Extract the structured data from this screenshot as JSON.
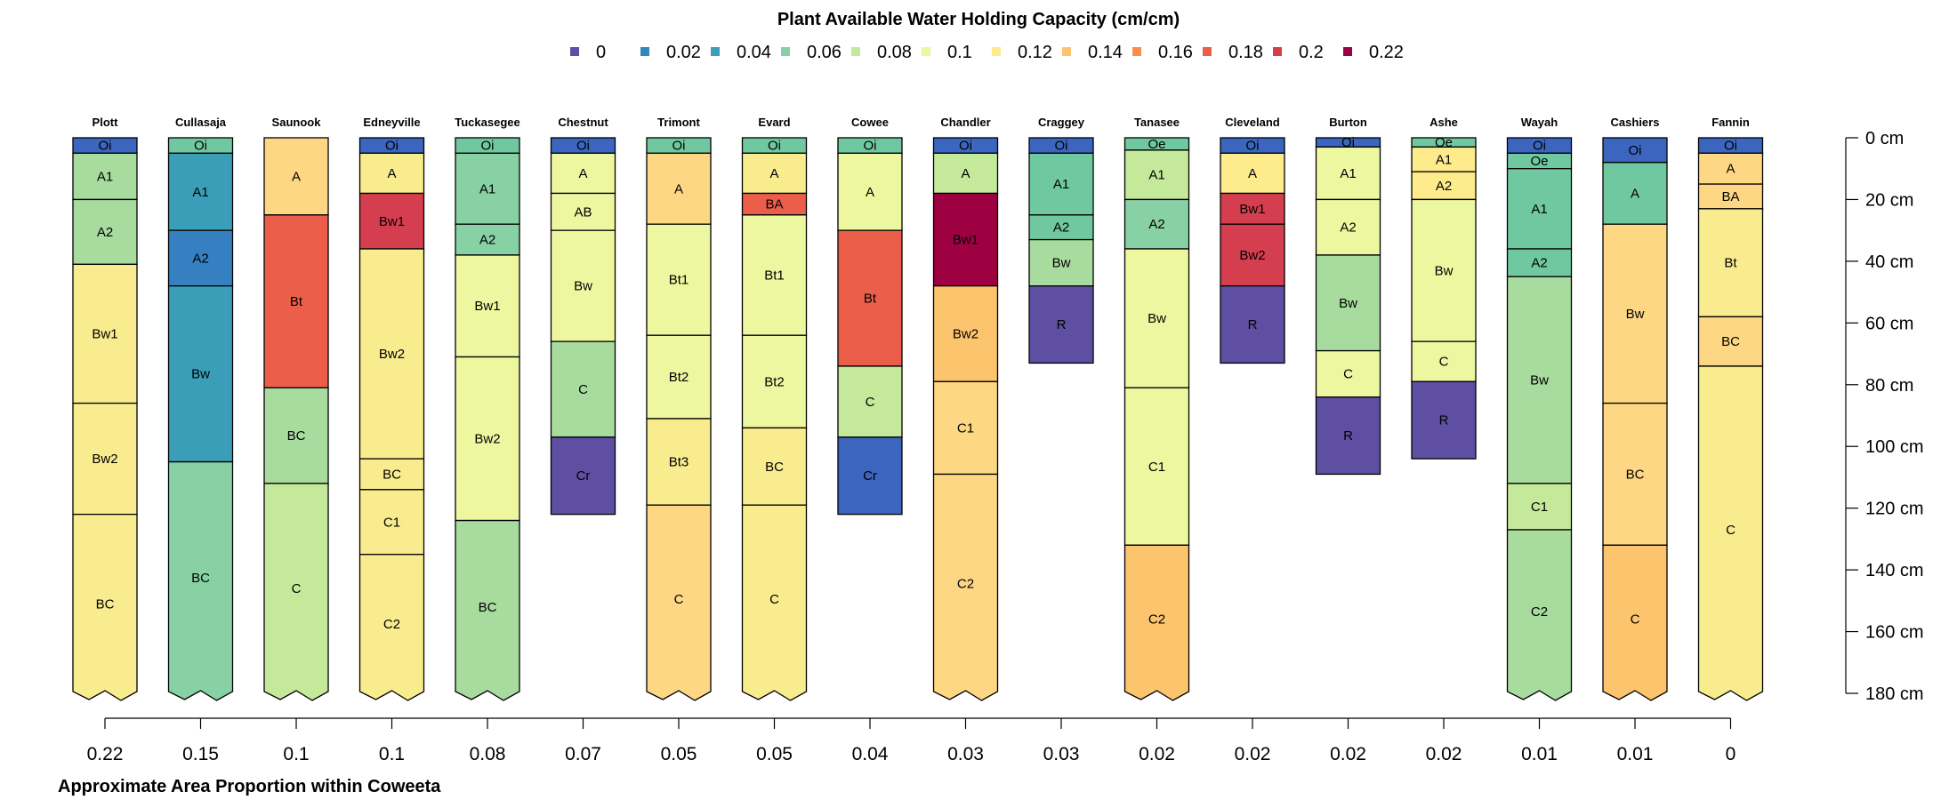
{
  "chart_data": {
    "type": "soil-profile",
    "title": "Plant Available Water Holding Capacity (cm/cm)",
    "xlabel": "Approximate Area Proportion within Coweeta",
    "legend": {
      "placement": "top-center",
      "items": [
        {
          "label": "0",
          "color": "#5E4FA2"
        },
        {
          "label": "0.02",
          "color": "#3288BD"
        },
        {
          "label": "0.04",
          "color": "#3A9EB9"
        },
        {
          "label": "0.06",
          "color": "#88D1A4"
        },
        {
          "label": "0.08",
          "color": "#C5E99B"
        },
        {
          "label": "0.1",
          "color": "#EDF7A0"
        },
        {
          "label": "0.12",
          "color": "#FDEB8C"
        },
        {
          "label": "0.14",
          "color": "#FDC46E"
        },
        {
          "label": "0.16",
          "color": "#F88D52"
        },
        {
          "label": "0.18",
          "color": "#EA5E4A"
        },
        {
          "label": "0.2",
          "color": "#D53E4F"
        },
        {
          "label": "0.22",
          "color": "#9E0142"
        }
      ]
    },
    "depth_axis": {
      "unit": "cm",
      "ticks": [
        "0 cm",
        "20 cm",
        "40 cm",
        "60 cm",
        "80 cm",
        "100 cm",
        "120 cm",
        "140 cm",
        "160 cm",
        "180 cm"
      ],
      "ylim": [
        0,
        180
      ]
    },
    "profiles": [
      {
        "name": "Plott",
        "area": "0.22",
        "truncated": true,
        "horizons": [
          {
            "name": "Oi",
            "top": 0,
            "bottom": 5,
            "color": "#3B65BE"
          },
          {
            "name": "A1",
            "top": 5,
            "bottom": 20,
            "color": "#A8DB9E"
          },
          {
            "name": "A2",
            "top": 20,
            "bottom": 41,
            "color": "#A8DB9E"
          },
          {
            "name": "Bw1",
            "top": 41,
            "bottom": 86,
            "color": "#F8EC8E"
          },
          {
            "name": "Bw2",
            "top": 86,
            "bottom": 122,
            "color": "#F8EC8E"
          },
          {
            "name": "BC",
            "top": 122,
            "bottom": 180,
            "color": "#F8EC8E"
          }
        ]
      },
      {
        "name": "Cullasaja",
        "area": "0.15",
        "truncated": true,
        "horizons": [
          {
            "name": "Oi",
            "top": 0,
            "bottom": 5,
            "color": "#70C8A0"
          },
          {
            "name": "A1",
            "top": 5,
            "bottom": 30,
            "color": "#3A9EB9"
          },
          {
            "name": "A2",
            "top": 30,
            "bottom": 48,
            "color": "#3580C0"
          },
          {
            "name": "Bw",
            "top": 48,
            "bottom": 105,
            "color": "#3A9EB9"
          },
          {
            "name": "BC",
            "top": 105,
            "bottom": 180,
            "color": "#88D1A4"
          }
        ]
      },
      {
        "name": "Saunook",
        "area": "0.1",
        "truncated": true,
        "horizons": [
          {
            "name": "A",
            "top": 0,
            "bottom": 25,
            "color": "#FDD784"
          },
          {
            "name": "Bt",
            "top": 25,
            "bottom": 81,
            "color": "#EA5E4A"
          },
          {
            "name": "BC",
            "top": 81,
            "bottom": 112,
            "color": "#A8DB9E"
          },
          {
            "name": "C",
            "top": 112,
            "bottom": 180,
            "color": "#C5E99B"
          }
        ]
      },
      {
        "name": "Edneyville",
        "area": "0.1",
        "truncated": true,
        "horizons": [
          {
            "name": "Oi",
            "top": 0,
            "bottom": 5,
            "color": "#3B65BE"
          },
          {
            "name": "A",
            "top": 5,
            "bottom": 18,
            "color": "#F8EC8E"
          },
          {
            "name": "Bw1",
            "top": 18,
            "bottom": 36,
            "color": "#D53E4F"
          },
          {
            "name": "Bw2",
            "top": 36,
            "bottom": 104,
            "color": "#F8EC8E"
          },
          {
            "name": "BC",
            "top": 104,
            "bottom": 114,
            "color": "#F8EC8E"
          },
          {
            "name": "C1",
            "top": 114,
            "bottom": 135,
            "color": "#F8EC8E"
          },
          {
            "name": "C2",
            "top": 135,
            "bottom": 180,
            "color": "#F8EC8E"
          }
        ]
      },
      {
        "name": "Tuckasegee",
        "area": "0.08",
        "truncated": true,
        "horizons": [
          {
            "name": "Oi",
            "top": 0,
            "bottom": 5,
            "color": "#70C8A0"
          },
          {
            "name": "A1",
            "top": 5,
            "bottom": 28,
            "color": "#88D1A4"
          },
          {
            "name": "A2",
            "top": 28,
            "bottom": 38,
            "color": "#88D1A4"
          },
          {
            "name": "Bw1",
            "top": 38,
            "bottom": 71,
            "color": "#EDF7A0"
          },
          {
            "name": "Bw2",
            "top": 71,
            "bottom": 124,
            "color": "#EDF7A0"
          },
          {
            "name": "BC",
            "top": 124,
            "bottom": 180,
            "color": "#A8DB9E"
          }
        ]
      },
      {
        "name": "Chestnut",
        "area": "0.07",
        "truncated": false,
        "horizons": [
          {
            "name": "Oi",
            "top": 0,
            "bottom": 5,
            "color": "#3B65BE"
          },
          {
            "name": "A",
            "top": 5,
            "bottom": 18,
            "color": "#EDF7A0"
          },
          {
            "name": "AB",
            "top": 18,
            "bottom": 30,
            "color": "#EDF7A0"
          },
          {
            "name": "Bw",
            "top": 30,
            "bottom": 66,
            "color": "#EDF7A0"
          },
          {
            "name": "C",
            "top": 66,
            "bottom": 97,
            "color": "#A8DB9E"
          },
          {
            "name": "Cr",
            "top": 97,
            "bottom": 122,
            "color": "#5E4FA2"
          }
        ]
      },
      {
        "name": "Trimont",
        "area": "0.05",
        "truncated": true,
        "horizons": [
          {
            "name": "Oi",
            "top": 0,
            "bottom": 5,
            "color": "#70C8A0"
          },
          {
            "name": "A",
            "top": 5,
            "bottom": 28,
            "color": "#FDD784"
          },
          {
            "name": "Bt1",
            "top": 28,
            "bottom": 64,
            "color": "#EDF7A0"
          },
          {
            "name": "Bt2",
            "top": 64,
            "bottom": 91,
            "color": "#EDF7A0"
          },
          {
            "name": "Bt3",
            "top": 91,
            "bottom": 119,
            "color": "#F8EC8E"
          },
          {
            "name": "C",
            "top": 119,
            "bottom": 180,
            "color": "#FDD784"
          }
        ]
      },
      {
        "name": "Evard",
        "area": "0.05",
        "truncated": true,
        "horizons": [
          {
            "name": "Oi",
            "top": 0,
            "bottom": 5,
            "color": "#70C8A0"
          },
          {
            "name": "A",
            "top": 5,
            "bottom": 18,
            "color": "#F8EC8E"
          },
          {
            "name": "BA",
            "top": 18,
            "bottom": 25,
            "color": "#EA5E4A"
          },
          {
            "name": "Bt1",
            "top": 25,
            "bottom": 64,
            "color": "#EDF7A0"
          },
          {
            "name": "Bt2",
            "top": 64,
            "bottom": 94,
            "color": "#EDF7A0"
          },
          {
            "name": "BC",
            "top": 94,
            "bottom": 119,
            "color": "#F8EC8E"
          },
          {
            "name": "C",
            "top": 119,
            "bottom": 180,
            "color": "#F8EC8E"
          }
        ]
      },
      {
        "name": "Cowee",
        "area": "0.04",
        "truncated": false,
        "horizons": [
          {
            "name": "Oi",
            "top": 0,
            "bottom": 5,
            "color": "#70C8A0"
          },
          {
            "name": "A",
            "top": 5,
            "bottom": 30,
            "color": "#EDF7A0"
          },
          {
            "name": "Bt",
            "top": 30,
            "bottom": 74,
            "color": "#EA5E4A"
          },
          {
            "name": "C",
            "top": 74,
            "bottom": 97,
            "color": "#C5E99B"
          },
          {
            "name": "Cr",
            "top": 97,
            "bottom": 122,
            "color": "#3B65BE"
          }
        ]
      },
      {
        "name": "Chandler",
        "area": "0.03",
        "truncated": true,
        "horizons": [
          {
            "name": "Oi",
            "top": 0,
            "bottom": 5,
            "color": "#3B65BE"
          },
          {
            "name": "A",
            "top": 5,
            "bottom": 18,
            "color": "#C5E99B"
          },
          {
            "name": "Bw1",
            "top": 18,
            "bottom": 48,
            "color": "#9E0142"
          },
          {
            "name": "Bw2",
            "top": 48,
            "bottom": 79,
            "color": "#FDC46E"
          },
          {
            "name": "C1",
            "top": 79,
            "bottom": 109,
            "color": "#FDD784"
          },
          {
            "name": "C2",
            "top": 109,
            "bottom": 180,
            "color": "#FDD784"
          }
        ]
      },
      {
        "name": "Craggey",
        "area": "0.03",
        "truncated": false,
        "horizons": [
          {
            "name": "Oi",
            "top": 0,
            "bottom": 5,
            "color": "#3B65BE"
          },
          {
            "name": "A1",
            "top": 5,
            "bottom": 25,
            "color": "#70C8A0"
          },
          {
            "name": "A2",
            "top": 25,
            "bottom": 33,
            "color": "#70C8A0"
          },
          {
            "name": "Bw",
            "top": 33,
            "bottom": 48,
            "color": "#A8DB9E"
          },
          {
            "name": "R",
            "top": 48,
            "bottom": 73,
            "color": "#5E4FA2"
          }
        ]
      },
      {
        "name": "Tanasee",
        "area": "0.02",
        "truncated": true,
        "horizons": [
          {
            "name": "Oe",
            "top": 0,
            "bottom": 4,
            "color": "#70C8A0"
          },
          {
            "name": "A1",
            "top": 4,
            "bottom": 20,
            "color": "#C5E99B"
          },
          {
            "name": "A2",
            "top": 20,
            "bottom": 36,
            "color": "#88D1A4"
          },
          {
            "name": "Bw",
            "top": 36,
            "bottom": 81,
            "color": "#EDF7A0"
          },
          {
            "name": "C1",
            "top": 81,
            "bottom": 132,
            "color": "#EDF7A0"
          },
          {
            "name": "C2",
            "top": 132,
            "bottom": 180,
            "color": "#FDC46E"
          }
        ]
      },
      {
        "name": "Cleveland",
        "area": "0.02",
        "truncated": false,
        "horizons": [
          {
            "name": "Oi",
            "top": 0,
            "bottom": 5,
            "color": "#3B65BE"
          },
          {
            "name": "A",
            "top": 5,
            "bottom": 18,
            "color": "#FDEB8C"
          },
          {
            "name": "Bw1",
            "top": 18,
            "bottom": 28,
            "color": "#D53E4F"
          },
          {
            "name": "Bw2",
            "top": 28,
            "bottom": 48,
            "color": "#D53E4F"
          },
          {
            "name": "R",
            "top": 48,
            "bottom": 73,
            "color": "#5E4FA2"
          }
        ]
      },
      {
        "name": "Burton",
        "area": "0.02",
        "truncated": false,
        "horizons": [
          {
            "name": "Oi",
            "top": 0,
            "bottom": 3,
            "color": "#3B65BE"
          },
          {
            "name": "A1",
            "top": 3,
            "bottom": 20,
            "color": "#EDF7A0"
          },
          {
            "name": "A2",
            "top": 20,
            "bottom": 38,
            "color": "#EDF7A0"
          },
          {
            "name": "Bw",
            "top": 38,
            "bottom": 69,
            "color": "#A8DB9E"
          },
          {
            "name": "C",
            "top": 69,
            "bottom": 84,
            "color": "#EDF7A0"
          },
          {
            "name": "R",
            "top": 84,
            "bottom": 109,
            "color": "#5E4FA2"
          }
        ]
      },
      {
        "name": "Ashe",
        "area": "0.02",
        "truncated": false,
        "horizons": [
          {
            "name": "Oe",
            "top": 0,
            "bottom": 3,
            "color": "#70C8A0"
          },
          {
            "name": "A1",
            "top": 3,
            "bottom": 11,
            "color": "#FDEB8C"
          },
          {
            "name": "A2",
            "top": 11,
            "bottom": 20,
            "color": "#FDEB8C"
          },
          {
            "name": "Bw",
            "top": 20,
            "bottom": 66,
            "color": "#EDF7A0"
          },
          {
            "name": "C",
            "top": 66,
            "bottom": 79,
            "color": "#EDF7A0"
          },
          {
            "name": "R",
            "top": 79,
            "bottom": 104,
            "color": "#5E4FA2"
          }
        ]
      },
      {
        "name": "Wayah",
        "area": "0.01",
        "truncated": true,
        "horizons": [
          {
            "name": "Oi",
            "top": 0,
            "bottom": 5,
            "color": "#3B65BE"
          },
          {
            "name": "Oe",
            "top": 5,
            "bottom": 10,
            "color": "#70C8A0"
          },
          {
            "name": "A1",
            "top": 10,
            "bottom": 36,
            "color": "#70C8A0"
          },
          {
            "name": "A2",
            "top": 36,
            "bottom": 45,
            "color": "#70C8A0"
          },
          {
            "name": "Bw",
            "top": 45,
            "bottom": 112,
            "color": "#A8DB9E"
          },
          {
            "name": "C1",
            "top": 112,
            "bottom": 127,
            "color": "#C5E99B"
          },
          {
            "name": "C2",
            "top": 127,
            "bottom": 180,
            "color": "#A8DB9E"
          }
        ]
      },
      {
        "name": "Cashiers",
        "area": "0.01",
        "truncated": true,
        "horizons": [
          {
            "name": "Oi",
            "top": 0,
            "bottom": 8,
            "color": "#3B65BE"
          },
          {
            "name": "A",
            "top": 8,
            "bottom": 28,
            "color": "#70C8A0"
          },
          {
            "name": "Bw",
            "top": 28,
            "bottom": 86,
            "color": "#FDD784"
          },
          {
            "name": "BC",
            "top": 86,
            "bottom": 132,
            "color": "#FDD784"
          },
          {
            "name": "C",
            "top": 132,
            "bottom": 180,
            "color": "#FDC46E"
          }
        ]
      },
      {
        "name": "Fannin",
        "area": "0",
        "truncated": true,
        "horizons": [
          {
            "name": "Oi",
            "top": 0,
            "bottom": 5,
            "color": "#3B65BE"
          },
          {
            "name": "A",
            "top": 5,
            "bottom": 15,
            "color": "#FDD784"
          },
          {
            "name": "BA",
            "top": 15,
            "bottom": 23,
            "color": "#FDD784"
          },
          {
            "name": "Bt",
            "top": 23,
            "bottom": 58,
            "color": "#F8EC8E"
          },
          {
            "name": "BC",
            "top": 58,
            "bottom": 74,
            "color": "#FDD784"
          },
          {
            "name": "C",
            "top": 74,
            "bottom": 180,
            "color": "#F8EC8E"
          }
        ]
      }
    ]
  }
}
